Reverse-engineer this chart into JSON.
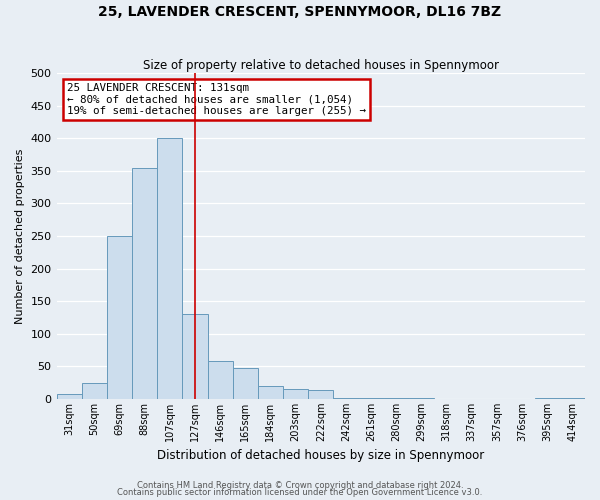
{
  "title": "25, LAVENDER CRESCENT, SPENNYMOOR, DL16 7BZ",
  "subtitle": "Size of property relative to detached houses in Spennymoor",
  "xlabel": "Distribution of detached houses by size in Spennymoor",
  "ylabel": "Number of detached properties",
  "bin_labels": [
    "31sqm",
    "50sqm",
    "69sqm",
    "88sqm",
    "107sqm",
    "127sqm",
    "146sqm",
    "165sqm",
    "184sqm",
    "203sqm",
    "222sqm",
    "242sqm",
    "261sqm",
    "280sqm",
    "299sqm",
    "318sqm",
    "337sqm",
    "357sqm",
    "376sqm",
    "395sqm",
    "414sqm"
  ],
  "bin_values": [
    7,
    25,
    250,
    355,
    400,
    130,
    58,
    48,
    20,
    15,
    14,
    2,
    2,
    2,
    1,
    0,
    0,
    0,
    0,
    2,
    2
  ],
  "bar_color": "#ccdded",
  "bar_edge_color": "#6699bb",
  "property_line_x": 5,
  "annotation_line1": "25 LAVENDER CRESCENT: 131sqm",
  "annotation_line2": "← 80% of detached houses are smaller (1,054)",
  "annotation_line3": "19% of semi-detached houses are larger (255) →",
  "annotation_box_facecolor": "#ffffff",
  "annotation_box_edgecolor": "#cc0000",
  "vline_color": "#cc0000",
  "ylim": [
    0,
    500
  ],
  "yticks": [
    0,
    50,
    100,
    150,
    200,
    250,
    300,
    350,
    400,
    450,
    500
  ],
  "footer1": "Contains HM Land Registry data © Crown copyright and database right 2024.",
  "footer2": "Contains public sector information licensed under the Open Government Licence v3.0.",
  "plot_bg_color": "#e8eef4",
  "fig_bg_color": "#e8eef4",
  "grid_color": "#ffffff"
}
